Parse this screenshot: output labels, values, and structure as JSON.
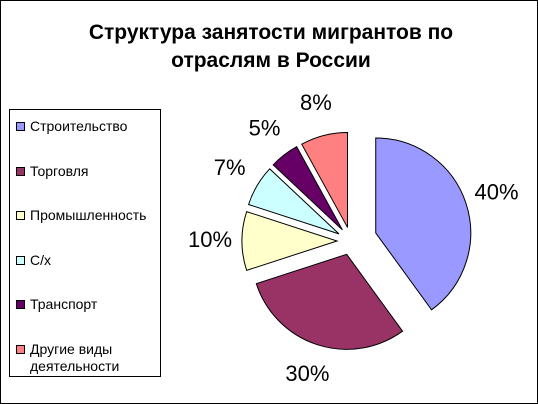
{
  "chart_data": {
    "type": "pie",
    "title": "Структура занятости мигрантов по отраслям в России",
    "categories": [
      "Строительство",
      "Торговля",
      "Промышленность",
      "С/х",
      "Транспорт",
      "Другие виды деятельности"
    ],
    "values": [
      40,
      30,
      10,
      7,
      5,
      8
    ],
    "value_labels": [
      "40%",
      "30%",
      "10%",
      "7%",
      "5%",
      "8%"
    ],
    "colors": [
      "#9999ff",
      "#993366",
      "#ffffcc",
      "#ccffff",
      "#660066",
      "#ff8080"
    ],
    "legend": "left"
  }
}
